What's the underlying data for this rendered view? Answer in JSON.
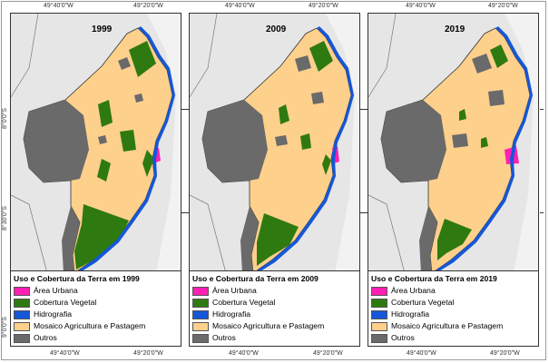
{
  "coords": {
    "top": [
      "49°40'0\"W",
      "49°20'0\"W"
    ],
    "bottom": [
      "49°40'0\"W",
      "49°20'0\"W"
    ],
    "left": [
      "8°0'0\"S",
      "8°30'0\"S",
      "9°0'0\"S"
    ]
  },
  "legend_entries": [
    {
      "label": "Área Urbana",
      "color": "#ff1fb4"
    },
    {
      "label": "Cobertura Vegetal",
      "color": "#2f7a10"
    },
    {
      "label": "Hidrografia",
      "color": "#1557d8"
    },
    {
      "label": "Mosaico Agricultura e Pastagem",
      "color": "#fdd08c"
    },
    {
      "label": "Outros",
      "color": "#6a6a6a"
    }
  ],
  "panels": [
    {
      "year": "1999",
      "legend_title": "Uso e Cobertura da Terra em 1999"
    },
    {
      "year": "2009",
      "legend_title": "Uso e Cobertura da Terra em 2009"
    },
    {
      "year": "2019",
      "legend_title": "Uso e Cobertura da Terra em 2019"
    }
  ]
}
